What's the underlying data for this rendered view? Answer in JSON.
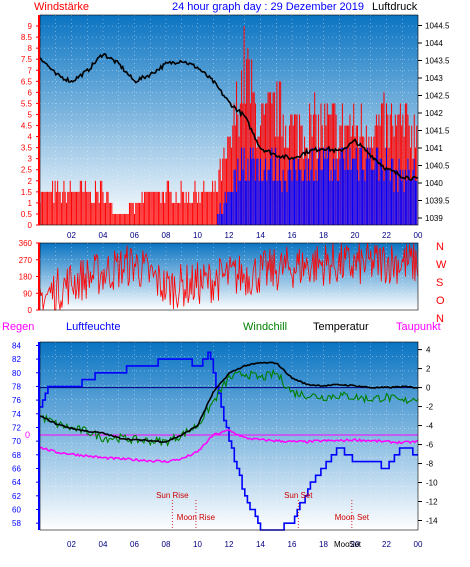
{
  "header": {
    "left_label": "Windstärke",
    "title": "24 hour graph day : 29 Dezember 2019",
    "right_label": "Luftdruck"
  },
  "colors": {
    "red": "#ff0000",
    "blue": "#0000ff",
    "black": "#000000",
    "green": "#008000",
    "magenta": "#ff00ff",
    "sky_top": "#0a74c2",
    "sky_bottom": "#ffffff"
  },
  "time_ticks": [
    "02",
    "04",
    "06",
    "08",
    "10",
    "12",
    "14",
    "16",
    "18",
    "20",
    "22",
    "00"
  ],
  "chart_data": [
    {
      "type": "line",
      "panel": "wind-pressure",
      "left_axis": {
        "label": "Windstärke",
        "ticks": [
          "0",
          "0.5",
          "1",
          "1.5",
          "2",
          "2.5",
          "3",
          "3.5",
          "4",
          "4.5",
          "5",
          "5.5",
          "6",
          "6.5",
          "7",
          "7.5",
          "8",
          "8.5",
          "9"
        ],
        "ylim": [
          0,
          9.5
        ]
      },
      "right_axis": {
        "label": "Luftdruck",
        "ticks": [
          "1039",
          "1039.5",
          "1040",
          "1040.5",
          "1041",
          "1041.5",
          "1042",
          "1042.5",
          "1043",
          "1043.5",
          "1044",
          "1044.5"
        ],
        "ylim": [
          1038.8,
          1044.8
        ]
      },
      "series": [
        {
          "name": "Luftdruck",
          "color": "#000000",
          "x": [
            0,
            1,
            2,
            3,
            4,
            5,
            6,
            7,
            8,
            9,
            10,
            11,
            12,
            13,
            14,
            15,
            16,
            17,
            18,
            19,
            20,
            21,
            22,
            23,
            24
          ],
          "values": [
            1043.6,
            1043.1,
            1042.9,
            1043.2,
            1043.7,
            1043.4,
            1042.9,
            1043.1,
            1043.4,
            1043.5,
            1043.3,
            1042.9,
            1042.3,
            1041.9,
            1041.0,
            1040.8,
            1040.7,
            1040.9,
            1041.0,
            1040.9,
            1041.2,
            1040.8,
            1040.4,
            1040.2,
            1040.1
          ]
        },
        {
          "name": "Windstärke Böen",
          "color": "#ff0000",
          "x": [
            0,
            1,
            2,
            3,
            4,
            5,
            6,
            7,
            8,
            9,
            10,
            11,
            12,
            13,
            14,
            15,
            16,
            17,
            18,
            19,
            20,
            21,
            22,
            23,
            24
          ],
          "values": [
            1.8,
            1.8,
            1.8,
            1.8,
            1.8,
            0.5,
            1.0,
            1.8,
            1.8,
            1.8,
            1.8,
            1.8,
            4.0,
            9.0,
            5.5,
            6.5,
            5.5,
            5.5,
            5.5,
            5.5,
            5.5,
            5.5,
            5.5,
            5.5,
            5.5
          ]
        },
        {
          "name": "Windstärke Mittel",
          "color": "#0000ff",
          "x": [
            0,
            1,
            2,
            3,
            4,
            5,
            6,
            7,
            8,
            9,
            10,
            11,
            12,
            13,
            14,
            15,
            16,
            17,
            18,
            19,
            20,
            21,
            22,
            23,
            24
          ],
          "values": [
            0,
            0,
            0,
            1.0,
            1.0,
            0,
            0,
            0,
            0,
            0,
            0,
            0,
            2.0,
            4.0,
            3.5,
            3.5,
            3.0,
            3.5,
            3.5,
            3.5,
            4.0,
            4.0,
            3.5,
            3.0,
            3.0
          ]
        }
      ]
    },
    {
      "type": "line",
      "panel": "wind-direction",
      "left_axis": {
        "ticks": [
          "0",
          "90",
          "180",
          "270",
          "360"
        ],
        "ylim": [
          0,
          360
        ]
      },
      "right_axis": {
        "ticks": [
          "N",
          "W",
          "S",
          "O",
          "N"
        ]
      },
      "series": [
        {
          "name": "Windrichtung",
          "color": "#ff0000",
          "x": [
            0,
            2,
            4,
            6,
            8,
            10,
            12,
            14,
            16,
            18,
            20,
            22,
            24
          ],
          "values": [
            60,
            150,
            200,
            250,
            120,
            140,
            180,
            200,
            230,
            250,
            240,
            260,
            250
          ]
        }
      ]
    },
    {
      "type": "line",
      "panel": "humidity-temperature",
      "header": {
        "regen": "Regen",
        "luftfeuchte": "Luftfeuchte",
        "windchill": "Windchill",
        "temperatur": "Temperatur",
        "taupunkt": "Taupunkt"
      },
      "left_axis": {
        "ticks": [
          "58",
          "60",
          "62",
          "64",
          "66",
          "68",
          "70",
          "72",
          "74",
          "76",
          "78",
          "80",
          "82",
          "84"
        ],
        "ylim": [
          57,
          84.5
        ]
      },
      "right_axis": {
        "ticks": [
          "4",
          "2",
          "0",
          "-2",
          "-4",
          "-6",
          "-8",
          "-10",
          "-12",
          "-14"
        ],
        "ylim": [
          -15,
          4.8
        ]
      },
      "zero_marker": "0",
      "series": [
        {
          "name": "Luftfeuchte",
          "color": "#0000ff",
          "x": [
            0,
            0.5,
            2,
            3,
            4,
            5,
            6,
            7,
            8,
            9,
            10,
            10.7,
            11,
            12,
            13,
            14,
            15,
            16,
            17,
            18,
            19,
            20,
            21,
            22,
            23,
            24
          ],
          "values": [
            75,
            77.5,
            77.5,
            79,
            80,
            80,
            81,
            81,
            82,
            82,
            81,
            83,
            80,
            70,
            62,
            57,
            57,
            58,
            63,
            66,
            69,
            67,
            67,
            66,
            69,
            68
          ]
        },
        {
          "name": "Temperatur",
          "color": "#000000",
          "x": [
            0,
            1,
            2,
            3,
            4,
            5,
            6,
            7,
            8,
            9,
            10,
            11,
            12,
            13,
            14,
            15,
            16,
            17,
            18,
            19,
            20,
            21,
            22,
            23,
            24
          ],
          "values": [
            -3,
            -3.8,
            -4.3,
            -4.6,
            -4.8,
            -5.3,
            -5.5,
            -5.6,
            -5.7,
            -5.0,
            -4.0,
            -0.5,
            1.5,
            2.3,
            2.6,
            2.6,
            1.0,
            0.3,
            0.2,
            0.3,
            0.2,
            0.0,
            0.0,
            0.1,
            0.0
          ]
        },
        {
          "name": "Windchill",
          "color": "#008000",
          "x": [
            0,
            1,
            2,
            3,
            4,
            5,
            6,
            7,
            8,
            9,
            10,
            11,
            12,
            13,
            14,
            15,
            16,
            17,
            18,
            19,
            20,
            21,
            22,
            23,
            24
          ],
          "values": [
            -3,
            -3.8,
            -4.3,
            -4.6,
            -5.3,
            -5.3,
            -5.5,
            -5.6,
            -5.7,
            -5.0,
            -4.0,
            -1.5,
            1.0,
            1.5,
            1.0,
            1.5,
            -0.5,
            -0.8,
            -1.0,
            -0.8,
            -1.0,
            -1.2,
            -1.0,
            -1.5,
            -1.0
          ]
        },
        {
          "name": "Taupunkt",
          "color": "#ff00ff",
          "x": [
            0,
            1,
            2,
            3,
            4,
            5,
            6,
            7,
            8,
            9,
            10,
            11,
            12,
            13,
            14,
            15,
            16,
            17,
            18,
            19,
            20,
            21,
            22,
            23,
            24
          ],
          "values": [
            -6.3,
            -6.8,
            -7.0,
            -7.2,
            -7.4,
            -7.5,
            -7.6,
            -7.7,
            -7.8,
            -7.5,
            -6.8,
            -5.0,
            -4.5,
            -5.3,
            -5.5,
            -5.6,
            -5.7,
            -5.7,
            -5.6,
            -5.6,
            -5.5,
            -5.6,
            -5.7,
            -5.8,
            -5.7
          ]
        }
      ],
      "events": [
        {
          "label": "Sun Rise",
          "hour": 8.4
        },
        {
          "label": "Moon Rise",
          "hour": 9.9
        },
        {
          "label": "Sun Set",
          "hour": 16.4
        },
        {
          "label": "Moon Set",
          "hour": 19.8
        }
      ],
      "time_tick_overlay": "Moo",
      "time_tick_overlay2": "Set"
    }
  ]
}
